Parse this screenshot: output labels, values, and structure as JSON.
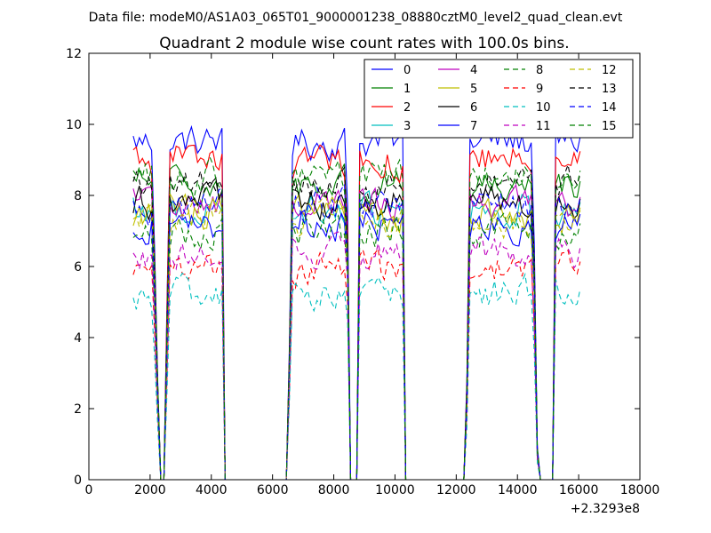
{
  "suptitle": "Data file: modeM0/AS1A03_065T01_9000001238_08880cztM0_level2_quad_clean.evt",
  "chart_data": {
    "type": "line",
    "title": "Quadrant 2 module wise count rates with 100.0s bins.",
    "xlabel": "",
    "ylabel": "",
    "x_offset_label": "+2.3293e8",
    "xlim": [
      0,
      18000
    ],
    "ylim": [
      0,
      12
    ],
    "x_ticks": [
      0,
      2000,
      4000,
      6000,
      8000,
      10000,
      12000,
      14000,
      16000,
      18000
    ],
    "y_ticks": [
      0,
      2,
      4,
      6,
      8,
      10,
      12
    ],
    "grid": false,
    "legend_position": "top-right",
    "legend_columns": 4,
    "x": [
      1450,
      1550,
      1650,
      1750,
      1850,
      1950,
      2050,
      2150,
      2250,
      2350,
      2450,
      2550,
      2650,
      2750,
      2850,
      2950,
      3050,
      3150,
      3250,
      3350,
      3450,
      3550,
      3650,
      3750,
      3850,
      3950,
      4050,
      4150,
      4250,
      4350,
      4450,
      4550,
      4650,
      4750,
      4850,
      4950,
      5050,
      5150,
      5250,
      5350,
      5450,
      5550,
      5650,
      5750,
      5850,
      5950,
      6050,
      6150,
      6250,
      6350,
      6450,
      6550,
      6650,
      6750,
      6850,
      6950,
      7050,
      7150,
      7250,
      7350,
      7450,
      7550,
      7650,
      7750,
      7850,
      7950,
      8050,
      8150,
      8250,
      8350,
      8450,
      8550,
      8650,
      8750,
      8850,
      8950,
      9050,
      9150,
      9250,
      9350,
      9450,
      9550,
      9650,
      9750,
      9850,
      9950,
      10050,
      10150,
      10250,
      10350,
      10450,
      10550,
      10650,
      10750,
      10850,
      10950,
      11050,
      11150,
      11250,
      11350,
      11450,
      11550,
      11650,
      11750,
      11850,
      11950,
      12050,
      12150,
      12250,
      12350,
      12450,
      12550,
      12650,
      12750,
      12850,
      12950,
      13050,
      13150,
      13250,
      13350,
      13450,
      13550,
      13650,
      13750,
      13850,
      13950,
      14050,
      14150,
      14250,
      14350,
      14450,
      14550,
      14650,
      14750,
      14850,
      14950,
      15050,
      15150,
      15250,
      15350,
      15450,
      15550,
      15650,
      15750,
      15850,
      15950,
      16050
    ],
    "envelope": [
      1,
      1,
      1,
      1,
      1,
      1,
      1,
      0.7,
      0.3,
      0,
      0,
      0.5,
      1,
      1,
      1,
      1,
      1,
      1,
      1,
      1,
      1,
      1,
      1,
      1,
      1,
      1,
      1,
      1,
      1,
      1,
      0,
      0,
      0,
      0,
      0,
      0,
      0,
      0,
      0,
      0,
      0,
      0,
      0,
      0,
      0,
      0,
      0,
      0,
      0,
      0,
      0,
      0.4,
      1,
      1,
      1,
      1,
      1,
      1,
      1,
      1,
      1,
      1,
      1,
      1,
      1,
      1,
      1,
      1,
      1,
      1,
      0.8,
      0,
      0,
      0,
      1,
      1,
      1,
      1,
      1,
      1,
      1,
      1,
      1,
      1,
      1,
      1,
      1,
      1,
      1,
      0,
      0,
      0,
      0,
      0,
      0,
      0,
      0,
      0,
      0,
      0,
      0,
      0,
      0,
      0,
      0,
      0,
      0,
      0,
      0,
      0.3,
      1,
      1,
      1,
      1,
      1,
      1,
      1,
      1,
      1,
      1,
      1,
      1,
      1,
      1,
      1,
      1,
      1,
      1,
      1,
      1,
      1,
      0.7,
      0.1,
      0,
      0,
      0,
      0,
      0,
      1,
      1,
      1,
      1,
      1,
      1,
      1,
      1,
      1,
      1
    ],
    "series": [
      {
        "name": "0",
        "color": "#0000ff",
        "dash": "solid",
        "level": 9.5
      },
      {
        "name": "1",
        "color": "#008000",
        "dash": "solid",
        "level": 8.3
      },
      {
        "name": "2",
        "color": "#ff0000",
        "dash": "solid",
        "level": 9.0
      },
      {
        "name": "3",
        "color": "#00bfbf",
        "dash": "solid",
        "level": 7.6
      },
      {
        "name": "4",
        "color": "#bf00bf",
        "dash": "solid",
        "level": 7.8
      },
      {
        "name": "5",
        "color": "#bfbf00",
        "dash": "solid",
        "level": 7.5
      },
      {
        "name": "6",
        "color": "#000000",
        "dash": "solid",
        "level": 7.8
      },
      {
        "name": "7",
        "color": "#0000ff",
        "dash": "solid",
        "level": 7.2
      },
      {
        "name": "8",
        "color": "#008000",
        "dash": "dashed",
        "level": 7.0
      },
      {
        "name": "9",
        "color": "#ff0000",
        "dash": "dashed",
        "level": 5.9
      },
      {
        "name": "10",
        "color": "#00bfbf",
        "dash": "dashed",
        "level": 5.2
      },
      {
        "name": "11",
        "color": "#bf00bf",
        "dash": "dashed",
        "level": 6.4
      },
      {
        "name": "12",
        "color": "#bfbf00",
        "dash": "dashed",
        "level": 7.3
      },
      {
        "name": "13",
        "color": "#000000",
        "dash": "dashed",
        "level": 8.3
      },
      {
        "name": "14",
        "color": "#0000ff",
        "dash": "dashed",
        "level": 7.7
      },
      {
        "name": "15",
        "color": "#008000",
        "dash": "dashed",
        "level": 8.5
      }
    ]
  }
}
